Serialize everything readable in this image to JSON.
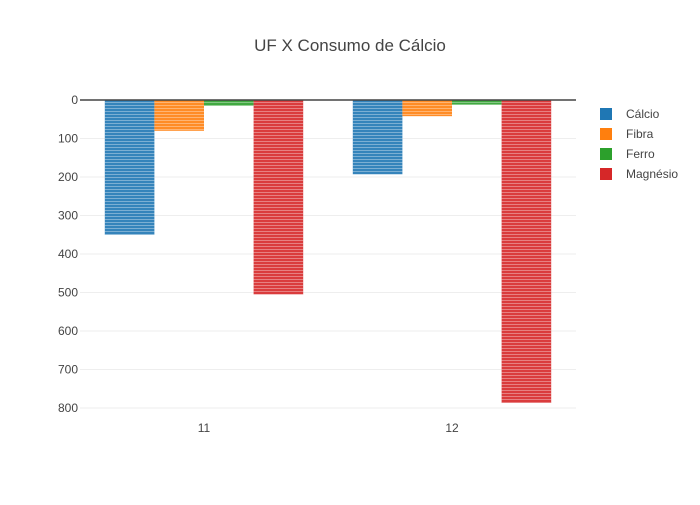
{
  "chart_data": {
    "type": "bar",
    "title": "UF X Consumo de Cálcio",
    "xlabel": "",
    "ylabel": "",
    "categories": [
      "11",
      "12"
    ],
    "ylim": [
      0,
      800
    ],
    "y_reversed": true,
    "y_ticks": [
      0,
      100,
      200,
      300,
      400,
      500,
      600,
      700,
      800
    ],
    "grid": true,
    "legend_position": "right",
    "series": [
      {
        "name": "Cálcio",
        "color": "#1f77b4",
        "values": [
          350,
          193
        ]
      },
      {
        "name": "Fibra",
        "color": "#ff7f0e",
        "values": [
          80,
          42
        ]
      },
      {
        "name": "Ferro",
        "color": "#2ca02c",
        "values": [
          15,
          12
        ]
      },
      {
        "name": "Magnésio",
        "color": "#d62728",
        "values": [
          505,
          787
        ]
      }
    ]
  }
}
